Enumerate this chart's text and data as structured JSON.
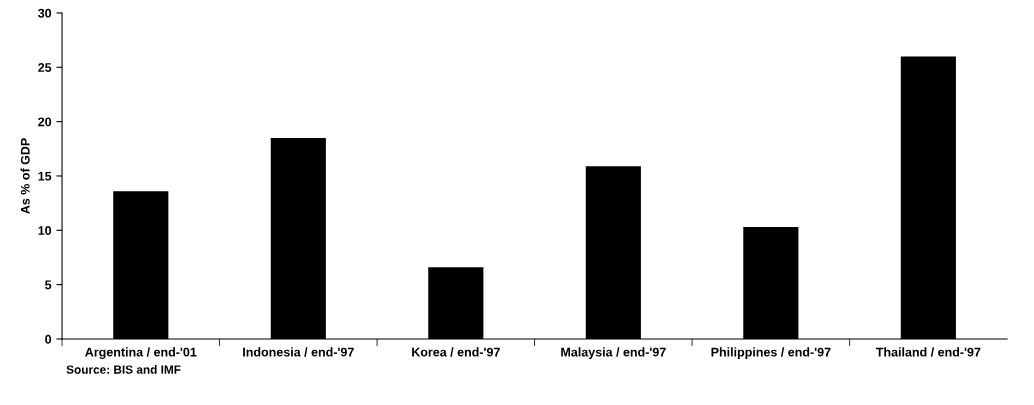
{
  "chart_data": {
    "type": "bar",
    "ylabel": "As % of GDP",
    "categories": [
      "Argentina / end-'01",
      "Indonesia / end-'97",
      "Korea / end-'97",
      "Malaysia / end-'97",
      "Philippines / end-'97",
      "Thailand / end-'97"
    ],
    "values": [
      13.6,
      18.5,
      6.6,
      15.9,
      10.3,
      26.0
    ],
    "color": "#000000",
    "ylim": [
      0,
      30
    ],
    "yticks": [
      0,
      5,
      10,
      15,
      20,
      25,
      30
    ],
    "grid": false,
    "legend": false,
    "annotations": [
      "Source: BIS and IMF"
    ]
  }
}
